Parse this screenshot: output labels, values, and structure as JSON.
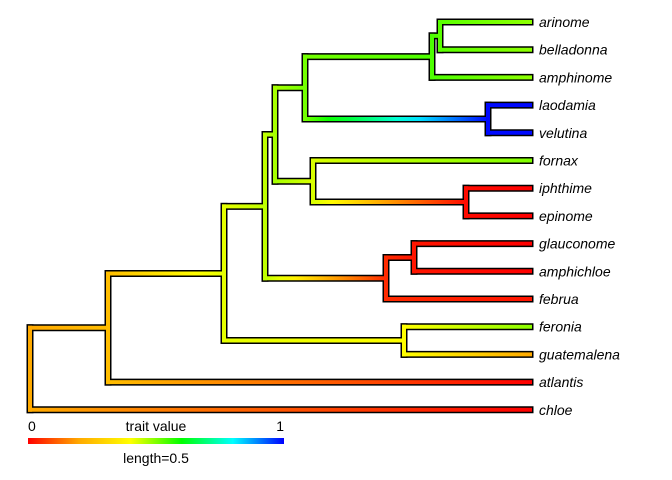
{
  "chart_data": {
    "type": "phylogram",
    "color_map": "trait value (contMap)",
    "legend": {
      "title": "trait value",
      "min_label": "0",
      "max_label": "1",
      "length_label": "length=0.5",
      "placement": "bottom-left",
      "gradient": [
        "#ff0000",
        "#ffaa00",
        "#ffff00",
        "#00ff00",
        "#00ffff",
        "#0000ff"
      ]
    },
    "tips": [
      {
        "name": "arinome",
        "value": 0.34
      },
      {
        "name": "belladonna",
        "value": 0.34
      },
      {
        "name": "amphinome",
        "value": 0.34
      },
      {
        "name": "laodamia",
        "value": 0.99
      },
      {
        "name": "velutina",
        "value": 0.99
      },
      {
        "name": "fornax",
        "value": 0.35
      },
      {
        "name": "iphthime",
        "value": 0.0
      },
      {
        "name": "epinome",
        "value": 0.0
      },
      {
        "name": "glauconome",
        "value": 0.0
      },
      {
        "name": "amphichloe",
        "value": 0.0
      },
      {
        "name": "februa",
        "value": 0.02
      },
      {
        "name": "feronia",
        "value": 0.34
      },
      {
        "name": "guatemalena",
        "value": 0.16
      },
      {
        "name": "atlantis",
        "value": 0.0
      },
      {
        "name": "chloe",
        "value": 0.0
      }
    ]
  }
}
